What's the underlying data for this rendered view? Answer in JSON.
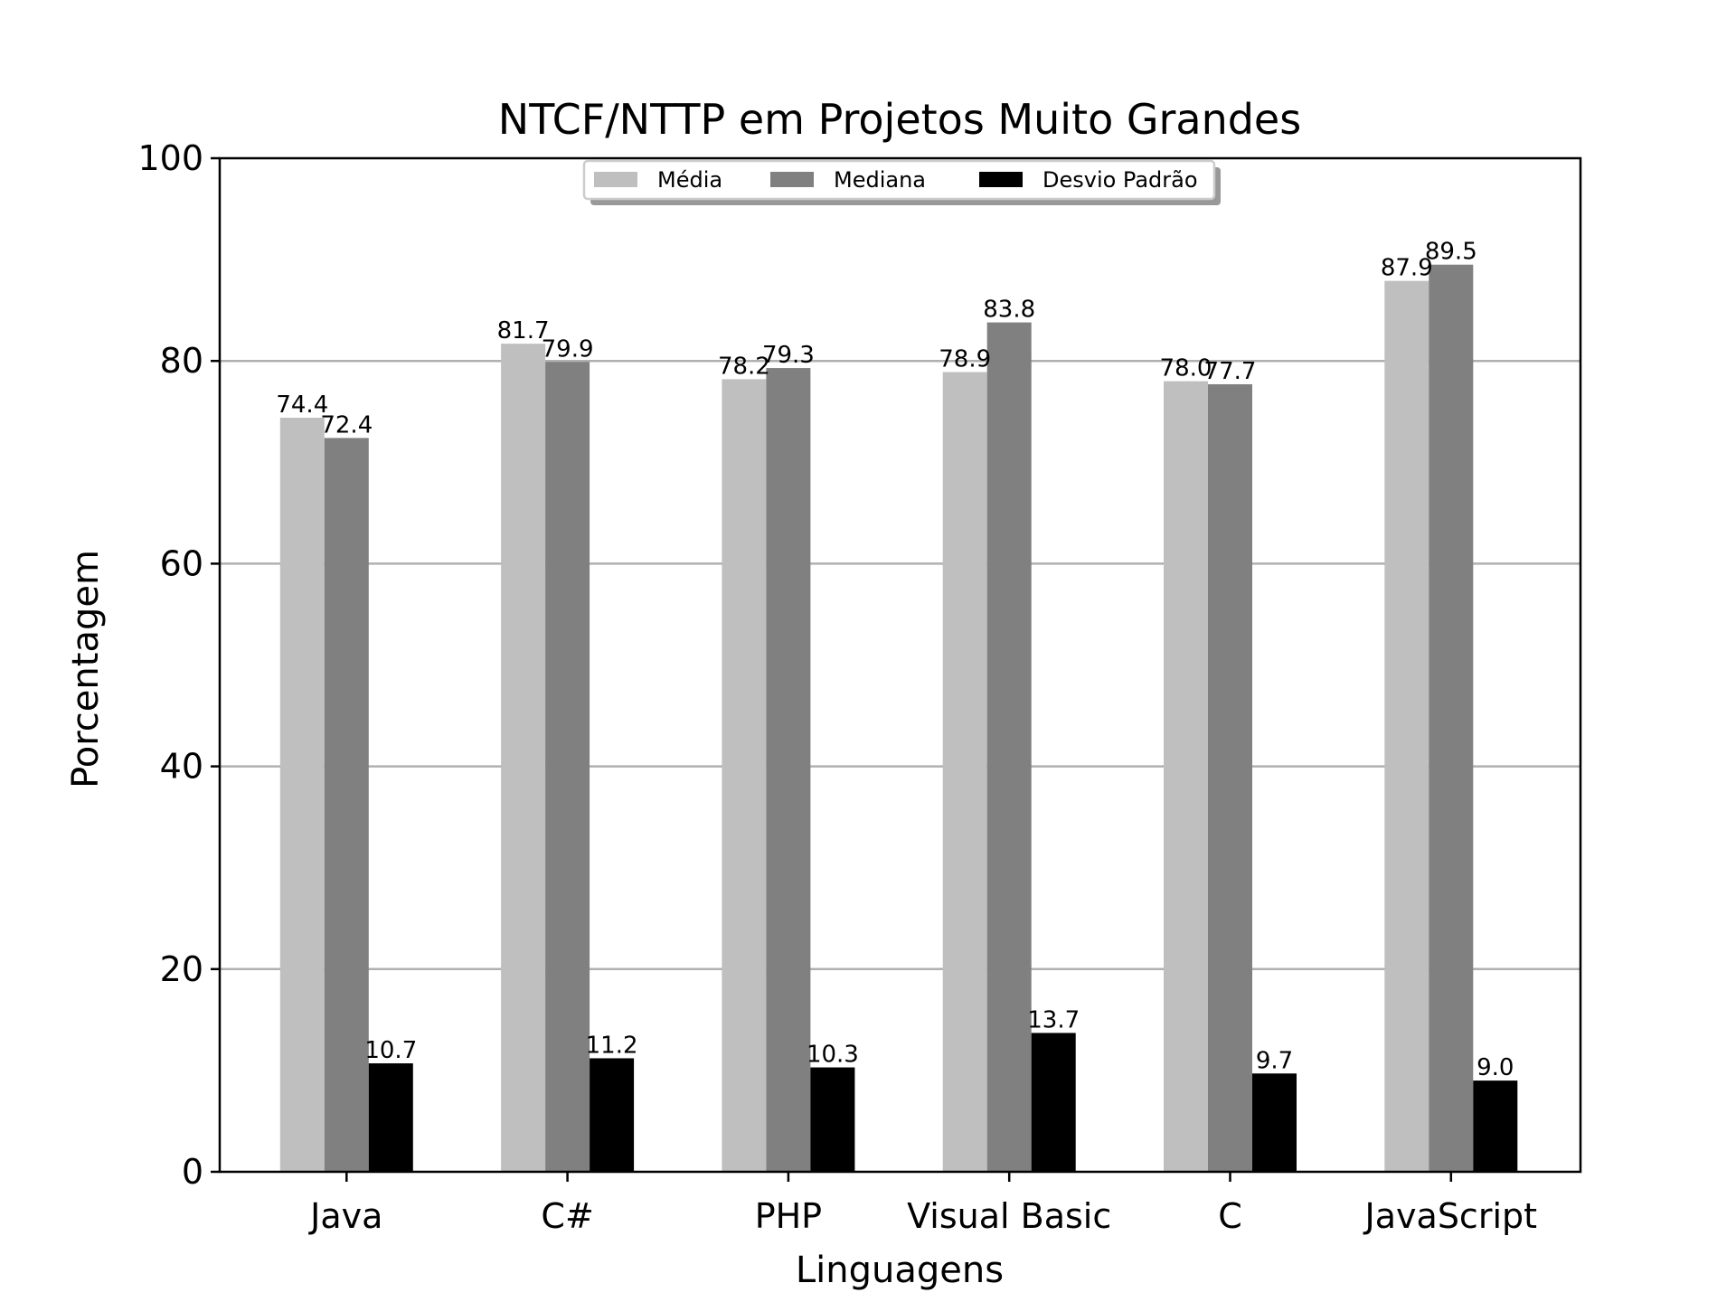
{
  "chart_data": {
    "type": "bar",
    "title": "NTCF/NTTP em Projetos Muito Grandes",
    "xlabel": "Linguagens",
    "ylabel": "Porcentagem",
    "ylim": [
      0,
      100
    ],
    "yticks": [
      0,
      20,
      40,
      60,
      80,
      100
    ],
    "grid": "horizontal",
    "legend_position": "top-center",
    "categories": [
      "Java",
      "C#",
      "PHP",
      "Visual Basic",
      "C",
      "JavaScript"
    ],
    "series": [
      {
        "name": "Média",
        "color": "#bfbfbf",
        "values": [
          74.4,
          81.7,
          78.2,
          78.9,
          78.0,
          87.9
        ],
        "labels": [
          "74.4",
          "81.7",
          "78.2",
          "78.9",
          "78.0",
          "87.9"
        ]
      },
      {
        "name": "Mediana",
        "color": "#808080",
        "values": [
          72.4,
          79.9,
          79.3,
          83.8,
          77.7,
          89.5
        ],
        "labels": [
          "72.4",
          "79.9",
          "79.3",
          "83.8",
          "77.7",
          "89.5"
        ]
      },
      {
        "name": "Desvio Padrão",
        "color": "#000000",
        "values": [
          10.7,
          11.2,
          10.3,
          13.7,
          9.7,
          9.0
        ],
        "labels": [
          "10.7",
          "11.2",
          "10.3",
          "13.7",
          "9.7",
          "9.0"
        ]
      }
    ]
  }
}
